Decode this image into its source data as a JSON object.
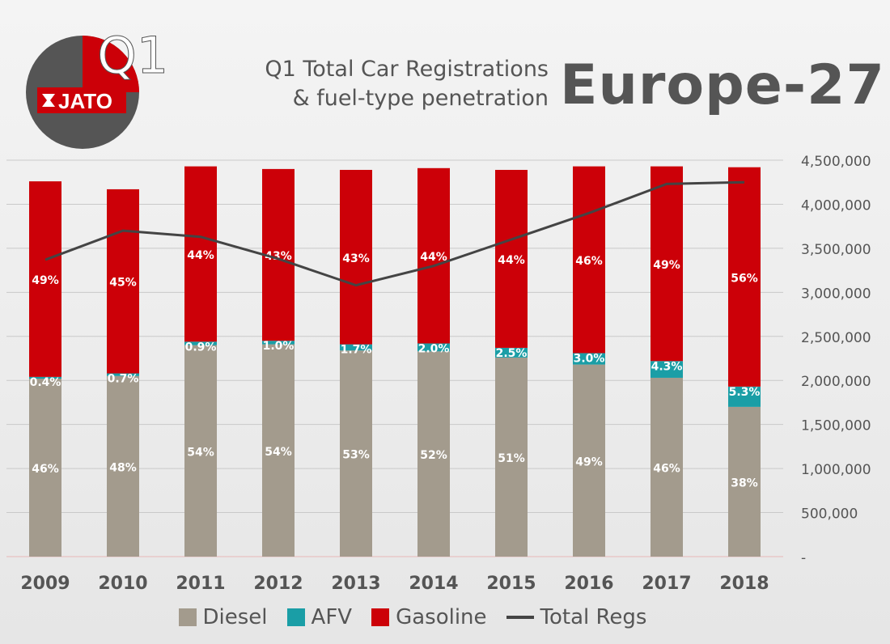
{
  "logo": {
    "quarter_label": "Q1",
    "brand": "JATO"
  },
  "title": {
    "line1": "Q1 Total Car Registrations",
    "line2": "& fuel-type penetration",
    "region": "Europe-27"
  },
  "colors": {
    "diesel": "#a39b8d",
    "afv": "#1a9ea6",
    "gasoline": "#cc0008",
    "total": "#444444",
    "grid": "#c9c9c9",
    "text": "#555555"
  },
  "chart_data": {
    "type": "bar",
    "categories": [
      "2009",
      "2010",
      "2011",
      "2012",
      "2013",
      "2014",
      "2015",
      "2016",
      "2017",
      "2018"
    ],
    "series": [
      {
        "name": "Diesel",
        "kind": "stacked-bar",
        "values": [
          2020000,
          2050000,
          2400000,
          2410000,
          2340000,
          2330000,
          2260000,
          2180000,
          2030000,
          1700000
        ],
        "labels": [
          "46%",
          "48%",
          "54%",
          "54%",
          "53%",
          "52%",
          "51%",
          "49%",
          "46%",
          "38%"
        ]
      },
      {
        "name": "AFV",
        "kind": "stacked-bar",
        "values": [
          20000,
          30000,
          40000,
          40000,
          70000,
          90000,
          110000,
          130000,
          190000,
          230000
        ],
        "labels": [
          "0.4%",
          "0.7%",
          "0.9%",
          "1.0%",
          "1.7%",
          "2.0%",
          "2.5%",
          "3.0%",
          "4.3%",
          "5.3%"
        ]
      },
      {
        "name": "Gasoline",
        "kind": "stacked-bar",
        "values": [
          2220000,
          2090000,
          1990000,
          1950000,
          1980000,
          1990000,
          2020000,
          2120000,
          2210000,
          2490000
        ],
        "labels": [
          "49%",
          "45%",
          "44%",
          "43%",
          "43%",
          "44%",
          "44%",
          "46%",
          "49%",
          "56%"
        ]
      },
      {
        "name": "Total Regs",
        "kind": "line",
        "values": [
          3370000,
          3700000,
          3630000,
          3380000,
          3080000,
          3300000,
          3600000,
          3900000,
          4230000,
          4250000
        ]
      }
    ],
    "y_axis": {
      "min": 0,
      "max": 4500000,
      "step": 500000,
      "position": "right",
      "tick_labels": [
        "-",
        "500,000",
        "1,000,000",
        "1,500,000",
        "2,000,000",
        "2,500,000",
        "3,000,000",
        "3,500,000",
        "4,000,000",
        "4,500,000"
      ]
    },
    "grid": true,
    "legend": "bottom"
  }
}
